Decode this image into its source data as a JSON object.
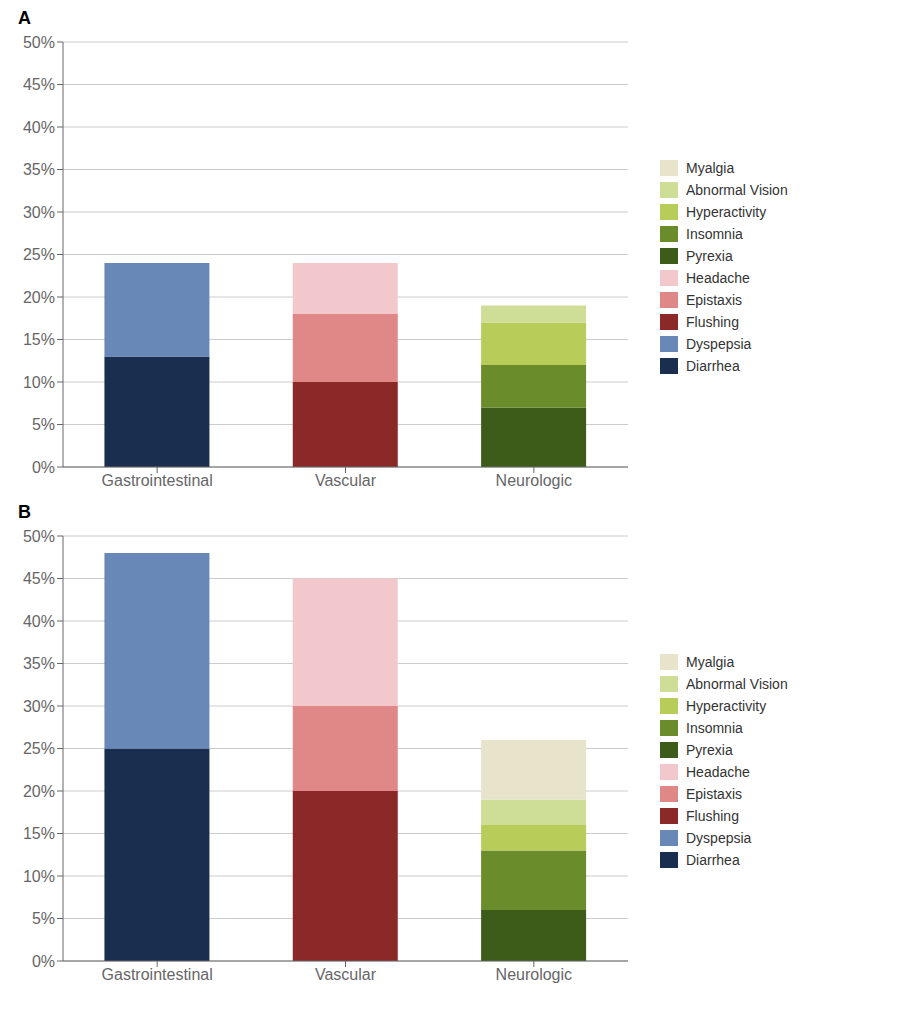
{
  "chart_data": [
    {
      "type": "bar",
      "title": "A",
      "stacked": true,
      "grid": true,
      "legend": "right",
      "categories": [
        "Gastrointestinal",
        "Vascular",
        "Neurologic"
      ],
      "series": [
        {
          "name": "Diarrhea",
          "color": "#1a2e50",
          "values": [
            13,
            0,
            0
          ]
        },
        {
          "name": "Dyspepsia",
          "color": "#6888b8",
          "values": [
            11,
            0,
            0
          ]
        },
        {
          "name": "Flushing",
          "color": "#8b2828",
          "values": [
            0,
            10,
            0
          ]
        },
        {
          "name": "Epistaxis",
          "color": "#e08888",
          "values": [
            0,
            8,
            0
          ]
        },
        {
          "name": "Headache",
          "color": "#f2c8cc",
          "values": [
            0,
            6,
            0
          ]
        },
        {
          "name": "Pyrexia",
          "color": "#3d5c1a",
          "values": [
            0,
            0,
            7
          ]
        },
        {
          "name": "Insomnia",
          "color": "#6b8c2a",
          "values": [
            0,
            0,
            5
          ]
        },
        {
          "name": "Hyperactivity",
          "color": "#b8cc5a",
          "values": [
            0,
            0,
            5
          ]
        },
        {
          "name": "Abnormal Vision",
          "color": "#cede96",
          "values": [
            0,
            0,
            2
          ]
        },
        {
          "name": "Myalgia",
          "color": "#e8e4cc",
          "values": [
            0,
            0,
            0
          ]
        }
      ],
      "ylim": [
        0,
        50
      ],
      "yticks": [
        {
          "value": 0,
          "label": "0%"
        },
        {
          "value": 5,
          "label": "5%"
        },
        {
          "value": 10,
          "label": "10%"
        },
        {
          "value": 15,
          "label": "15%"
        },
        {
          "value": 20,
          "label": "20%"
        },
        {
          "value": 25,
          "label": "25%"
        },
        {
          "value": 30,
          "label": "30%"
        },
        {
          "value": 35,
          "label": "35%"
        },
        {
          "value": 40,
          "label": "40%"
        },
        {
          "value": 45,
          "label": "45%"
        },
        {
          "value": 50,
          "label": "50%"
        }
      ]
    },
    {
      "type": "bar",
      "title": "B",
      "stacked": true,
      "grid": true,
      "legend": "right",
      "categories": [
        "Gastrointestinal",
        "Vascular",
        "Neurologic"
      ],
      "series": [
        {
          "name": "Diarrhea",
          "color": "#1a2e50",
          "values": [
            25,
            0,
            0
          ]
        },
        {
          "name": "Dyspepsia",
          "color": "#6888b8",
          "values": [
            23,
            0,
            0
          ]
        },
        {
          "name": "Flushing",
          "color": "#8b2828",
          "values": [
            0,
            20,
            0
          ]
        },
        {
          "name": "Epistaxis",
          "color": "#e08888",
          "values": [
            0,
            10,
            0
          ]
        },
        {
          "name": "Headache",
          "color": "#f2c8cc",
          "values": [
            0,
            15,
            0
          ]
        },
        {
          "name": "Pyrexia",
          "color": "#3d5c1a",
          "values": [
            0,
            0,
            6
          ]
        },
        {
          "name": "Insomnia",
          "color": "#6b8c2a",
          "values": [
            0,
            0,
            7
          ]
        },
        {
          "name": "Hyperactivity",
          "color": "#b8cc5a",
          "values": [
            0,
            0,
            3
          ]
        },
        {
          "name": "Abnormal Vision",
          "color": "#cede96",
          "values": [
            0,
            0,
            3
          ]
        },
        {
          "name": "Myalgia",
          "color": "#e8e4cc",
          "values": [
            0,
            0,
            7
          ]
        }
      ],
      "ylim": [
        0,
        50
      ],
      "yticks": [
        {
          "value": 0,
          "label": "0%"
        },
        {
          "value": 5,
          "label": "5%"
        },
        {
          "value": 10,
          "label": "10%"
        },
        {
          "value": 15,
          "label": "15%"
        },
        {
          "value": 20,
          "label": "20%"
        },
        {
          "value": 25,
          "label": "25%"
        },
        {
          "value": 30,
          "label": "30%"
        },
        {
          "value": 35,
          "label": "35%"
        },
        {
          "value": 40,
          "label": "40%"
        },
        {
          "value": 45,
          "label": "45%"
        },
        {
          "value": 50,
          "label": "50%"
        }
      ]
    }
  ]
}
